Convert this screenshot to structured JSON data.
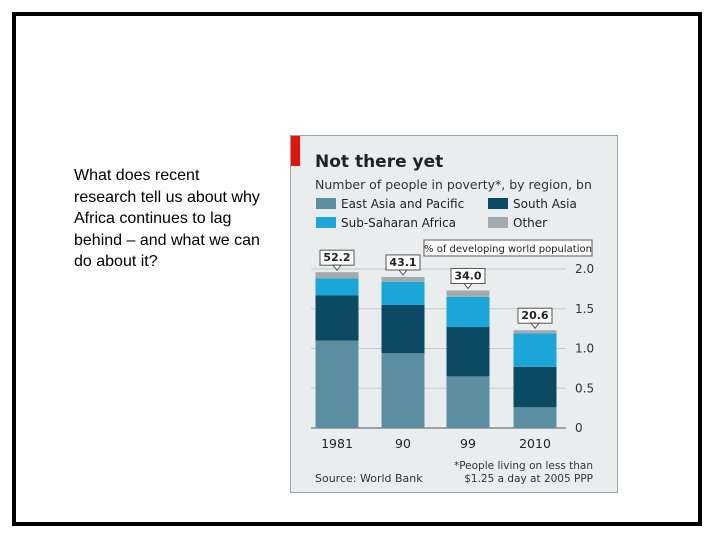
{
  "question_text": "What does recent research tell us about why Africa continues to lag behind – and what we can do about it?",
  "chart_data": {
    "type": "bar",
    "stacked": true,
    "title": "Not there yet",
    "subtitle": "Number of people in poverty*, by region, bn",
    "categories": [
      "1981",
      "90",
      "99",
      "2010"
    ],
    "series": [
      {
        "name": "East Asia and Pacific",
        "color": "#5b8ea0",
        "values": [
          1.1,
          0.94,
          0.65,
          0.26
        ]
      },
      {
        "name": "South Asia",
        "color": "#0b4a63",
        "values": [
          0.57,
          0.61,
          0.62,
          0.51
        ]
      },
      {
        "name": "Sub-Saharan Africa",
        "color": "#1aa6d8",
        "values": [
          0.21,
          0.29,
          0.38,
          0.42
        ]
      },
      {
        "name": "Other",
        "color": "#a3aaad",
        "values": [
          0.08,
          0.06,
          0.08,
          0.04
        ]
      }
    ],
    "annotations": {
      "label": "% of developing world population",
      "values": [
        "52.2",
        "43.1",
        "34.0",
        "20.6"
      ]
    },
    "y_ticks": [
      "2.0",
      "1.5",
      "1.0",
      "0.5",
      "0"
    ],
    "ylim": [
      0,
      2.0
    ],
    "y_axis_side": "right",
    "source": "Source: World Bank",
    "footnote_line1": "*People living on less than",
    "footnote_line2": "$1.25 a day at 2005 PPP",
    "accent_color": "#e3120b"
  }
}
